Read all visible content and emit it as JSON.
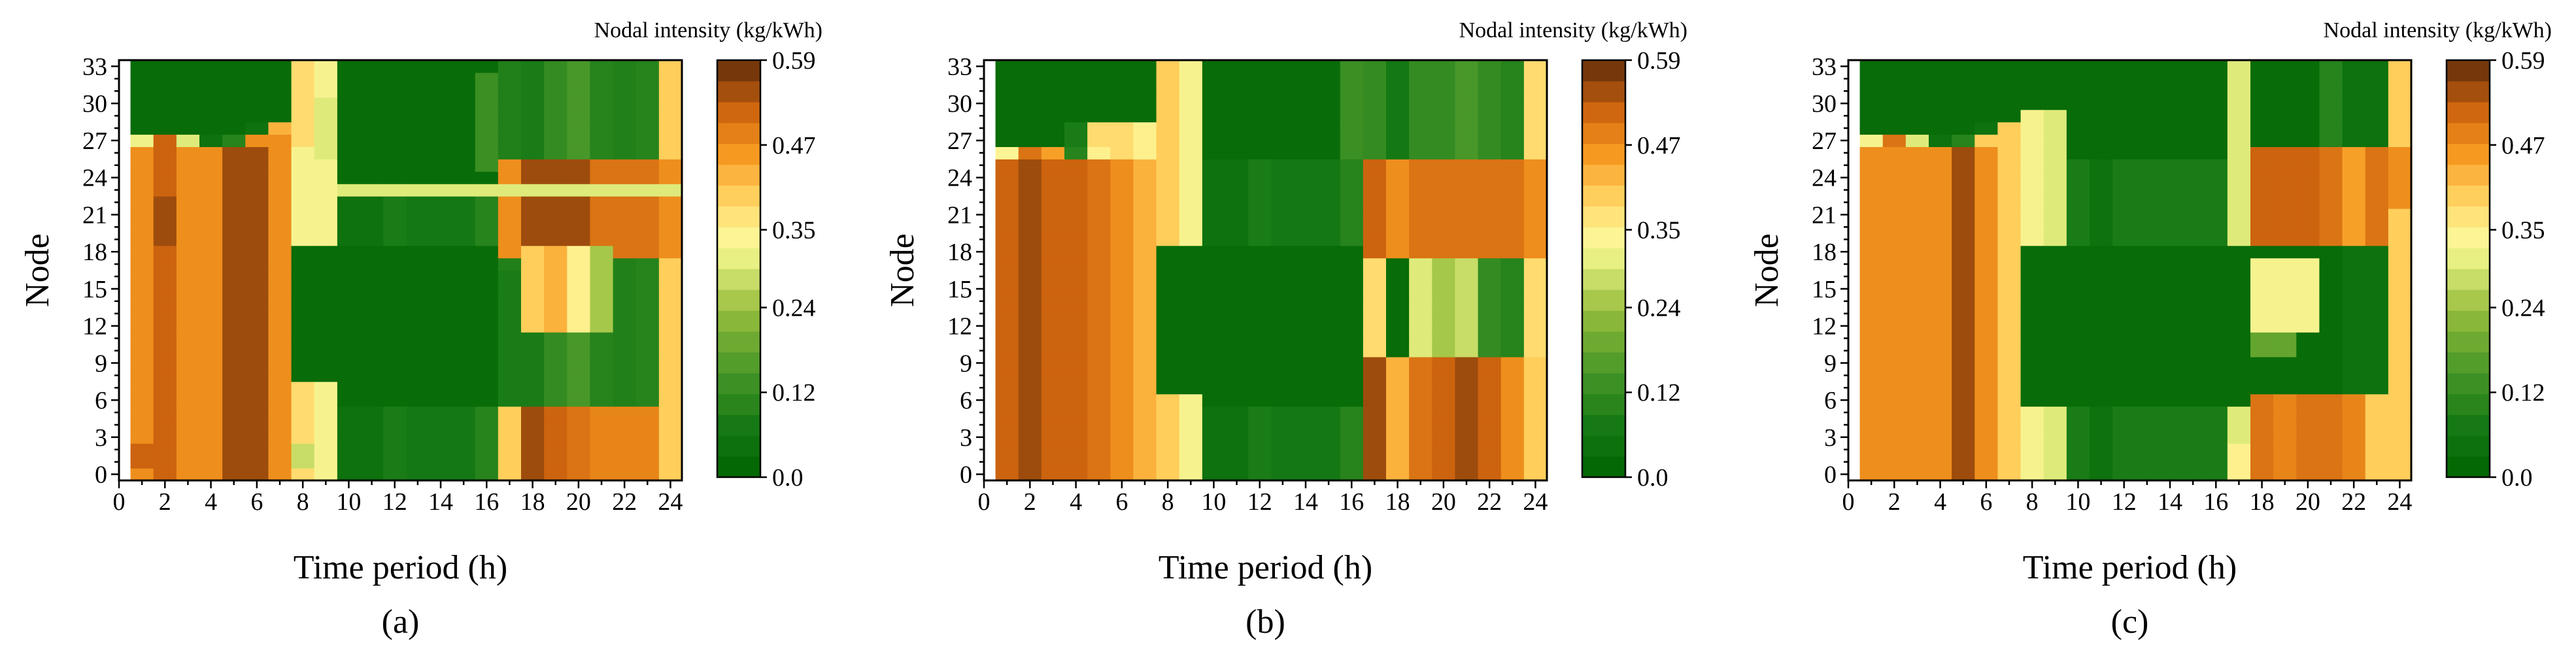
{
  "chart_data": [
    {
      "type": "heatmap",
      "panel_label": "(a)",
      "xlabel": "Time period (h)",
      "ylabel": "Node",
      "colorbar_label": "Nodal intensity (kg/kWh)",
      "colorbar_ticks": [
        "0.59",
        "0.47",
        "0.35",
        "0.24",
        "0.12",
        "0.0"
      ],
      "x_ticks": [
        "0",
        "2",
        "4",
        "6",
        "8",
        "10",
        "12",
        "14",
        "16",
        "18",
        "20",
        "22",
        "24"
      ],
      "y_ticks": [
        "33",
        "30",
        "27",
        "24",
        "21",
        "18",
        "15",
        "12",
        "9",
        "6",
        "3",
        "0"
      ],
      "xlim": [
        0,
        24.5
      ],
      "ylim": [
        -0.5,
        33.5
      ],
      "vmin": 0.0,
      "vmax": 0.59,
      "hours": 24,
      "nodes": 33,
      "blocks": [
        {
          "h": [
            1,
            7
          ],
          "n": [
            0,
            26
          ],
          "v": [
            0.47,
            0.52,
            0.47,
            0.47,
            0.55,
            0.55,
            0.47
          ]
        },
        {
          "h": [
            1,
            7
          ],
          "n": [
            27,
            27
          ],
          "v": [
            0.32,
            0.52,
            0.3,
            0.05,
            0.1,
            0.47,
            0.47
          ]
        },
        {
          "h": [
            1,
            7
          ],
          "n": [
            28,
            28
          ],
          "v": [
            0.03,
            0.03,
            0.03,
            0.03,
            0.03,
            0.05,
            0.43
          ]
        },
        {
          "h": [
            2,
            2
          ],
          "n": [
            19,
            22
          ],
          "v": [
            0.55
          ]
        },
        {
          "h": [
            1,
            1
          ],
          "n": [
            1,
            2
          ],
          "v": [
            0.52
          ]
        },
        {
          "h": [
            8,
            8
          ],
          "n": [
            0,
            33
          ],
          "v": [
            0.38
          ]
        },
        {
          "h": [
            8,
            8
          ],
          "n": [
            19,
            26
          ],
          "v": [
            0.33
          ]
        },
        {
          "h": [
            8,
            8
          ],
          "n": [
            8,
            18
          ],
          "v": [
            0.03
          ]
        },
        {
          "h": [
            8,
            8
          ],
          "n": [
            1,
            2
          ],
          "v": [
            0.28
          ]
        },
        {
          "h": [
            9,
            9
          ],
          "n": [
            0,
            33
          ],
          "v": [
            0.33
          ]
        },
        {
          "h": [
            9,
            9
          ],
          "n": [
            8,
            18
          ],
          "v": [
            0.03
          ]
        },
        {
          "h": [
            9,
            9
          ],
          "n": [
            26,
            30
          ],
          "v": [
            0.3
          ]
        },
        {
          "h": [
            10,
            16
          ],
          "n": [
            0,
            22
          ],
          "v": [
            0.05,
            0.05,
            0.08,
            0.07,
            0.07,
            0.07,
            0.1
          ]
        },
        {
          "h": [
            10,
            16
          ],
          "n": [
            6,
            18
          ],
          "v": [
            0.03,
            0.03,
            0.03,
            0.03,
            0.03,
            0.03,
            0.03
          ]
        },
        {
          "h": [
            10,
            16
          ],
          "n": [
            23,
            23
          ],
          "v": [
            0.3,
            0.3,
            0.3,
            0.3,
            0.3,
            0.3,
            0.3
          ]
        },
        {
          "h": [
            10,
            16
          ],
          "n": [
            24,
            33
          ],
          "v": [
            0.03,
            0.03,
            0.03,
            0.03,
            0.03,
            0.03,
            0.03
          ]
        },
        {
          "h": [
            16,
            16
          ],
          "n": [
            25,
            32
          ],
          "v": [
            0.13
          ]
        },
        {
          "h": [
            17,
            24
          ],
          "n": [
            0,
            33
          ],
          "v": [
            0.09,
            0.08,
            0.12,
            0.15,
            0.1,
            0.09,
            0.1,
            0.4
          ]
        },
        {
          "h": [
            17,
            24
          ],
          "n": [
            0,
            5
          ],
          "v": [
            0.4,
            0.55,
            0.52,
            0.5,
            0.48,
            0.48,
            0.48,
            0.4
          ]
        },
        {
          "h": [
            17,
            24
          ],
          "n": [
            18,
            25
          ],
          "v": [
            0.47,
            0.55,
            0.55,
            0.55,
            0.5,
            0.5,
            0.5,
            0.47
          ]
        },
        {
          "h": [
            18,
            21
          ],
          "n": [
            12,
            18
          ],
          "v": [
            0.4,
            0.43,
            0.35,
            0.25
          ]
        },
        {
          "h": [
            17,
            17
          ],
          "n": [
            6,
            16
          ],
          "v": [
            0.08
          ]
        },
        {
          "h": [
            17,
            24
          ],
          "n": [
            23,
            23
          ],
          "v": [
            0.3,
            0.3,
            0.3,
            0.3,
            0.3,
            0.3,
            0.3,
            0.3
          ]
        }
      ]
    },
    {
      "type": "heatmap",
      "panel_label": "(b)",
      "xlabel": "Time period (h)",
      "ylabel": "Node",
      "colorbar_label": "Nodal intensity (kg/kWh)",
      "colorbar_ticks": [
        "0.59",
        "0.47",
        "0.35",
        "0.24",
        "0.12",
        "0.0"
      ],
      "x_ticks": [
        "0",
        "2",
        "4",
        "6",
        "8",
        "10",
        "12",
        "14",
        "16",
        "18",
        "20",
        "22",
        "24"
      ],
      "y_ticks": [
        "33",
        "30",
        "27",
        "24",
        "21",
        "18",
        "15",
        "12",
        "9",
        "6",
        "3",
        "0"
      ],
      "xlim": [
        0,
        24.5
      ],
      "ylim": [
        -0.5,
        33.5
      ],
      "vmin": 0.0,
      "vmax": 0.59,
      "hours": 24,
      "nodes": 33,
      "blocks": [
        {
          "h": [
            1,
            7
          ],
          "n": [
            0,
            25
          ],
          "v": [
            0.52,
            0.55,
            0.52,
            0.52,
            0.5,
            0.47,
            0.43
          ]
        },
        {
          "h": [
            1,
            7
          ],
          "n": [
            26,
            26
          ],
          "v": [
            0.34,
            0.5,
            0.45,
            0.1,
            0.35,
            0.38,
            0.35
          ]
        },
        {
          "h": [
            1,
            7
          ],
          "n": [
            27,
            28
          ],
          "v": [
            0.03,
            0.03,
            0.03,
            0.08,
            0.38,
            0.38,
            0.35
          ]
        },
        {
          "h": [
            8,
            9
          ],
          "n": [
            0,
            33
          ],
          "v": [
            0.4,
            0.33
          ]
        },
        {
          "h": [
            8,
            9
          ],
          "n": [
            7,
            18
          ],
          "v": [
            0.03,
            0.03
          ]
        },
        {
          "h": [
            10,
            16
          ],
          "n": [
            0,
            25
          ],
          "v": [
            0.05,
            0.05,
            0.08,
            0.07,
            0.07,
            0.07,
            0.1
          ]
        },
        {
          "h": [
            10,
            16
          ],
          "n": [
            6,
            18
          ],
          "v": [
            0.03,
            0.03,
            0.03,
            0.03,
            0.03,
            0.03,
            0.03
          ]
        },
        {
          "h": [
            10,
            16
          ],
          "n": [
            26,
            33
          ],
          "v": [
            0.03,
            0.03,
            0.03,
            0.03,
            0.03,
            0.03,
            0.13
          ]
        },
        {
          "h": [
            17,
            24
          ],
          "n": [
            0,
            33
          ],
          "v": [
            0.12,
            0.07,
            0.12,
            0.12,
            0.15,
            0.12,
            0.1,
            0.38
          ]
        },
        {
          "h": [
            17,
            24
          ],
          "n": [
            0,
            9
          ],
          "v": [
            0.55,
            0.43,
            0.5,
            0.52,
            0.55,
            0.52,
            0.47,
            0.4
          ]
        },
        {
          "h": [
            17,
            24
          ],
          "n": [
            18,
            25
          ],
          "v": [
            0.52,
            0.47,
            0.5,
            0.5,
            0.5,
            0.5,
            0.5,
            0.47
          ]
        },
        {
          "h": [
            18,
            21
          ],
          "n": [
            10,
            17
          ],
          "v": [
            0.03,
            0.3,
            0.25,
            0.28
          ]
        },
        {
          "h": [
            17,
            17
          ],
          "n": [
            10,
            17
          ],
          "v": [
            0.38
          ]
        }
      ]
    },
    {
      "type": "heatmap",
      "panel_label": "(c)",
      "xlabel": "Time period (h)",
      "ylabel": "Node",
      "colorbar_label": "Nodal intensity (kg/kWh)",
      "colorbar_ticks": [
        "0.59",
        "0.47",
        "0.35",
        "0.24",
        "0.12",
        "0.0"
      ],
      "x_ticks": [
        "0",
        "2",
        "4",
        "6",
        "8",
        "10",
        "12",
        "14",
        "16",
        "18",
        "20",
        "22",
        "24"
      ],
      "y_ticks": [
        "33",
        "30",
        "27",
        "24",
        "21",
        "18",
        "15",
        "12",
        "9",
        "6",
        "3",
        "0"
      ],
      "xlim": [
        0,
        24.5
      ],
      "ylim": [
        -0.5,
        33.5
      ],
      "vmin": 0.0,
      "vmax": 0.59,
      "hours": 24,
      "nodes": 33,
      "blocks": [
        {
          "h": [
            1,
            7
          ],
          "n": [
            0,
            26
          ],
          "v": [
            0.47,
            0.47,
            0.47,
            0.47,
            0.55,
            0.47,
            0.4
          ]
        },
        {
          "h": [
            1,
            7
          ],
          "n": [
            27,
            27
          ],
          "v": [
            0.33,
            0.5,
            0.3,
            0.05,
            0.1,
            0.4,
            0.4
          ]
        },
        {
          "h": [
            1,
            7
          ],
          "n": [
            28,
            28
          ],
          "v": [
            0.03,
            0.03,
            0.03,
            0.03,
            0.03,
            0.05,
            0.4
          ]
        },
        {
          "h": [
            8,
            9
          ],
          "n": [
            0,
            29
          ],
          "v": [
            0.33,
            0.3
          ]
        },
        {
          "h": [
            8,
            9
          ],
          "n": [
            6,
            18
          ],
          "v": [
            0.03,
            0.03
          ]
        },
        {
          "h": [
            10,
            16
          ],
          "n": [
            0,
            25
          ],
          "v": [
            0.08,
            0.05,
            0.08,
            0.08,
            0.08,
            0.08,
            0.08
          ]
        },
        {
          "h": [
            10,
            16
          ],
          "n": [
            6,
            18
          ],
          "v": [
            0.03,
            0.03,
            0.03,
            0.03,
            0.03,
            0.03,
            0.03
          ]
        },
        {
          "h": [
            10,
            16
          ],
          "n": [
            26,
            33
          ],
          "v": [
            0.03,
            0.03,
            0.03,
            0.03,
            0.03,
            0.03,
            0.03
          ]
        },
        {
          "h": [
            17,
            17
          ],
          "n": [
            0,
            33
          ],
          "v": [
            0.3
          ]
        },
        {
          "h": [
            17,
            17
          ],
          "n": [
            6,
            18
          ],
          "v": [
            0.03
          ]
        },
        {
          "h": [
            17,
            17
          ],
          "n": [
            0,
            2
          ],
          "v": [
            0.35
          ]
        },
        {
          "h": [
            18,
            21
          ],
          "n": [
            0,
            6
          ],
          "v": [
            0.5,
            0.48,
            0.5,
            0.5
          ]
        },
        {
          "h": [
            18,
            21
          ],
          "n": [
            7,
            18
          ],
          "v": [
            0.03,
            0.03,
            0.03,
            0.03
          ]
        },
        {
          "h": [
            18,
            20
          ],
          "n": [
            12,
            17
          ],
          "v": [
            0.33,
            0.33,
            0.33
          ]
        },
        {
          "h": [
            18,
            20
          ],
          "n": [
            10,
            11
          ],
          "v": [
            0.18,
            0.18,
            0.03
          ]
        },
        {
          "h": [
            18,
            21
          ],
          "n": [
            19,
            26
          ],
          "v": [
            0.52,
            0.52,
            0.52,
            0.5
          ]
        },
        {
          "h": [
            22,
            23
          ],
          "n": [
            0,
            33
          ],
          "v": [
            0.05,
            0.05
          ]
        },
        {
          "h": [
            22,
            23
          ],
          "n": [
            0,
            6
          ],
          "v": [
            0.48,
            0.4
          ]
        },
        {
          "h": [
            22,
            23
          ],
          "n": [
            19,
            26
          ],
          "v": [
            0.45,
            0.5
          ]
        },
        {
          "h": [
            21,
            21
          ],
          "n": [
            27,
            33
          ],
          "v": [
            0.1
          ]
        },
        {
          "h": [
            24,
            24
          ],
          "n": [
            0,
            33
          ],
          "v": [
            0.4
          ]
        },
        {
          "h": [
            24,
            24
          ],
          "n": [
            22,
            26
          ],
          "v": [
            0.47
          ]
        }
      ]
    }
  ]
}
